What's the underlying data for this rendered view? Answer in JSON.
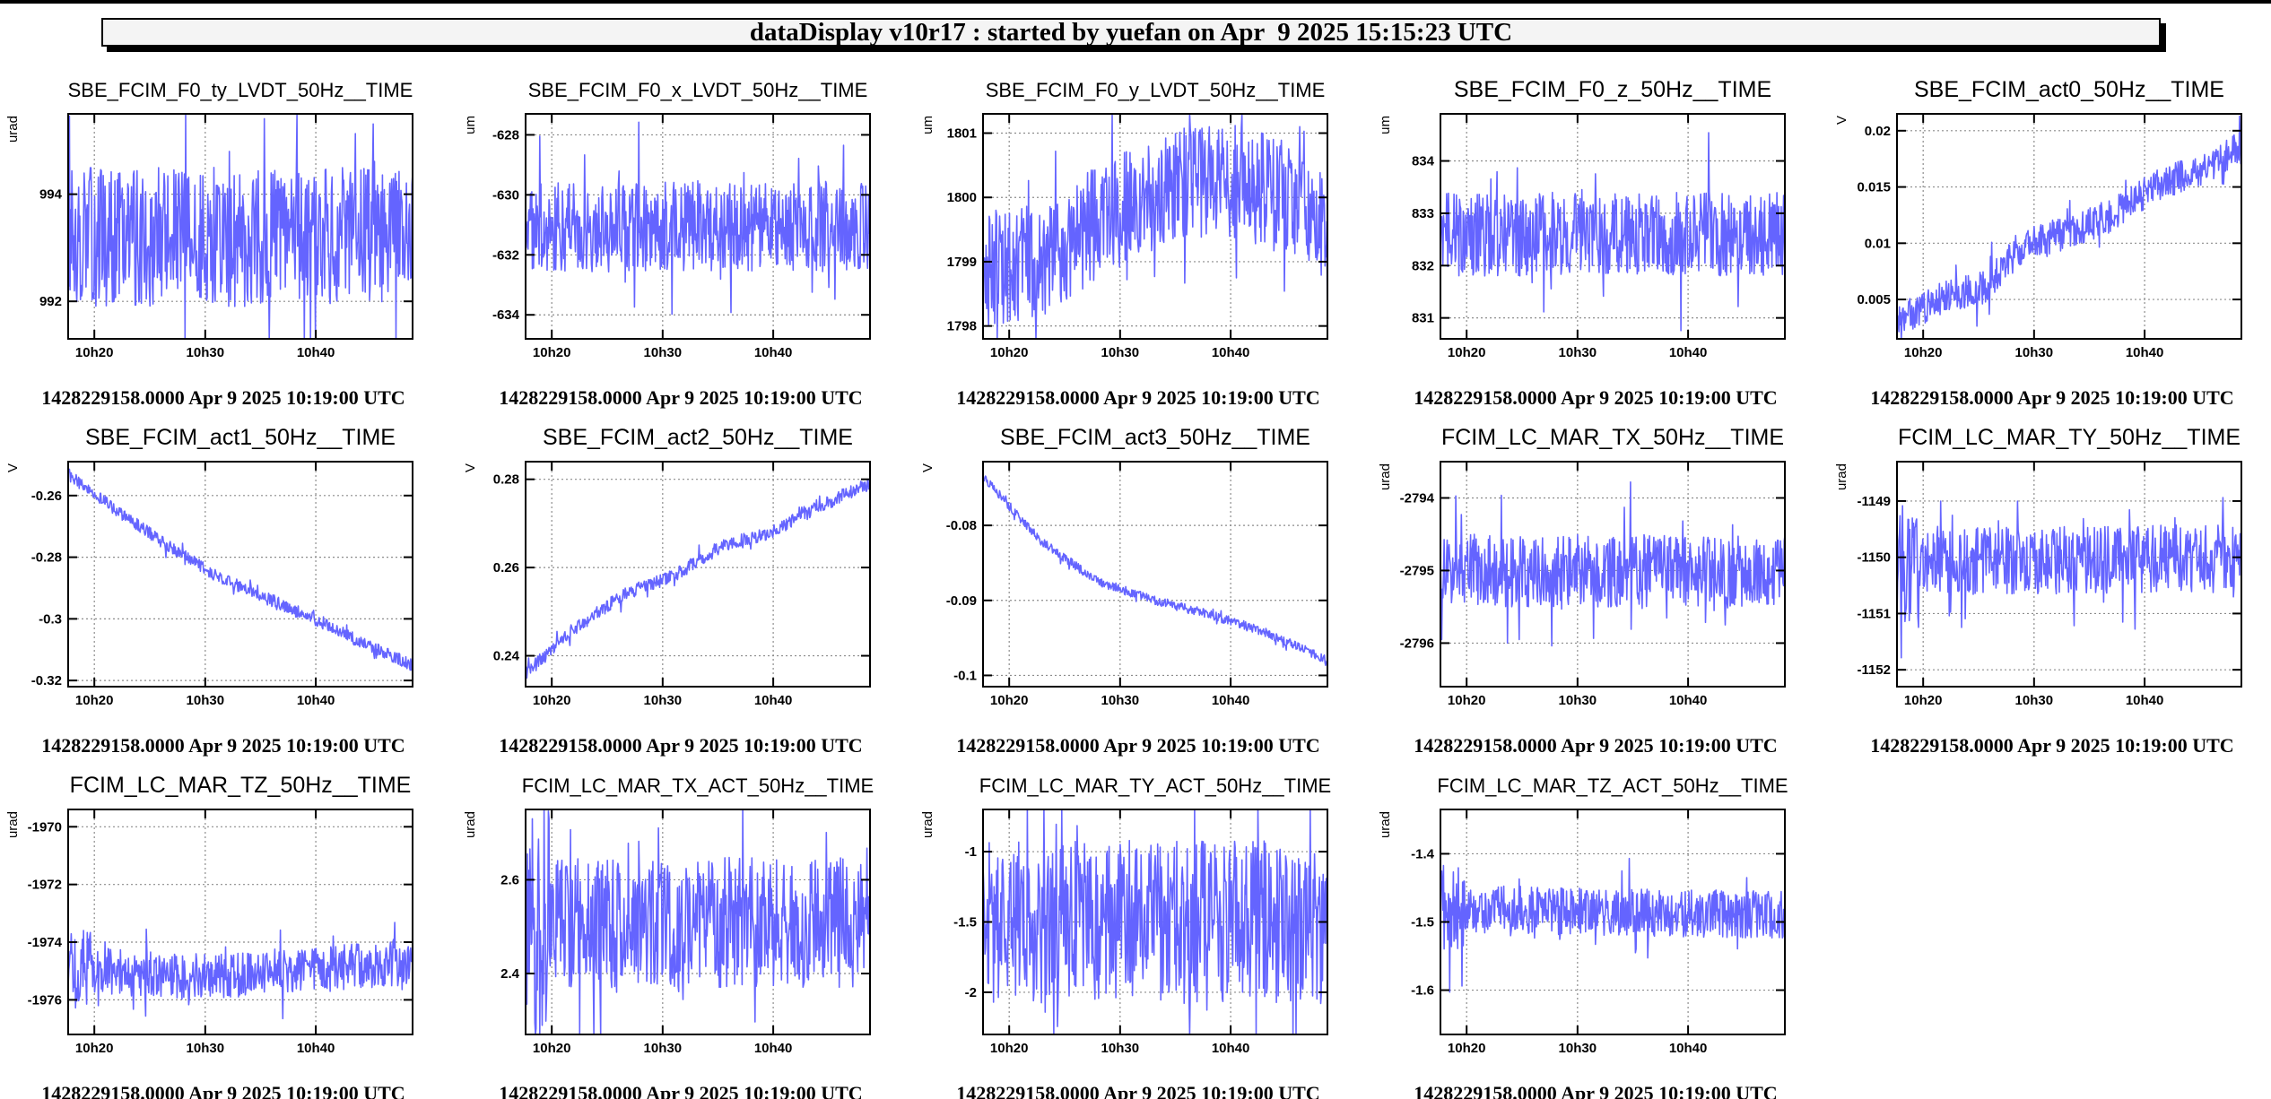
{
  "header": {
    "title": "dataDisplay v10r17 : started by yuefan on Apr  9 2025 15:15:23 UTC"
  },
  "colors": {
    "series": "#6464ff",
    "frame": "#000000",
    "grid": "#8c8c8c",
    "title_box": "#f4f4f4"
  },
  "chart_data": [
    {
      "type": "line",
      "title": "SBE_FCIM_F0_ty_LVDT_50Hz__TIME",
      "ylabel": "urad",
      "x_ticks": [
        "10h20",
        "10h30",
        "10h40"
      ],
      "y_ticks": [
        994,
        992
      ],
      "y_tick_labels": [
        "994",
        "992"
      ],
      "ylim": [
        991.3,
        995.5
      ],
      "grid": true,
      "trend": [
        993.2,
        993.2
      ],
      "band": 1.3,
      "footer": "1428229158.0000 Apr 9 2025 10:19:00 UTC"
    },
    {
      "type": "line",
      "title": "SBE_FCIM_F0_x_LVDT_50Hz__TIME",
      "ylabel": "um",
      "x_ticks": [
        "10h20",
        "10h30",
        "10h40"
      ],
      "y_ticks": [
        -628,
        -630,
        -632,
        -634
      ],
      "y_tick_labels": [
        "-628",
        "-630",
        "-632",
        "-634"
      ],
      "ylim": [
        -634.8,
        -627.3
      ],
      "grid": true,
      "trend": [
        -631.1,
        -631.0
      ],
      "band": 1.5,
      "footer": "1428229158.0000 Apr 9 2025 10:19:00 UTC"
    },
    {
      "type": "line",
      "title": "SBE_FCIM_F0_y_LVDT_50Hz__TIME",
      "ylabel": "um",
      "x_ticks": [
        "10h20",
        "10h30",
        "10h40"
      ],
      "y_ticks": [
        1801,
        1800,
        1799,
        1798
      ],
      "y_tick_labels": [
        "1801",
        "1800",
        "1799",
        "1798"
      ],
      "ylim": [
        1797.8,
        1801.3
      ],
      "grid": true,
      "trend": [
        1798.9,
        1799.0,
        1799.6,
        1800.1,
        1800.3,
        1800.1,
        1799.6
      ],
      "band": 0.9,
      "footer": "1428229158.0000 Apr 9 2025 10:19:00 UTC"
    },
    {
      "type": "line",
      "title": "SBE_FCIM_F0_z_50Hz__TIME",
      "ylabel": "um",
      "x_ticks": [
        "10h20",
        "10h30",
        "10h40"
      ],
      "y_ticks": [
        834,
        833,
        832,
        831
      ],
      "y_tick_labels": [
        "834",
        "833",
        "832",
        "831"
      ],
      "ylim": [
        830.6,
        834.9
      ],
      "grid": true,
      "trend": [
        832.6,
        832.6
      ],
      "band": 0.8,
      "footer": "1428229158.0000 Apr 9 2025 10:19:00 UTC"
    },
    {
      "type": "line",
      "title": "SBE_FCIM_act0_50Hz__TIME",
      "ylabel": "V",
      "x_ticks": [
        "10h20",
        "10h30",
        "10h40"
      ],
      "y_ticks": [
        0.02,
        0.015,
        0.01,
        0.005
      ],
      "y_tick_labels": [
        "0.02",
        "0.015",
        "0.01",
        "0.005"
      ],
      "ylim": [
        0.0015,
        0.0215
      ],
      "grid": true,
      "trend": [
        0.003,
        0.005,
        0.006,
        0.01,
        0.011,
        0.0125,
        0.015,
        0.0165,
        0.0185
      ],
      "band": 0.0015,
      "footer": "1428229158.0000 Apr 9 2025 10:19:00 UTC"
    },
    {
      "type": "line",
      "title": "SBE_FCIM_act1_50Hz__TIME",
      "ylabel": "V",
      "x_ticks": [
        "10h20",
        "10h30",
        "10h40"
      ],
      "y_ticks": [
        -0.26,
        -0.28,
        -0.3,
        -0.32
      ],
      "y_tick_labels": [
        "-0.26",
        "-0.28",
        "-0.3",
        "-0.32"
      ],
      "ylim": [
        -0.322,
        -0.249
      ],
      "grid": true,
      "trend": [
        -0.253,
        -0.265,
        -0.276,
        -0.286,
        -0.293,
        -0.3,
        -0.308,
        -0.315
      ],
      "band": 0.002,
      "footer": "1428229158.0000 Apr 9 2025 10:19:00 UTC"
    },
    {
      "type": "line",
      "title": "SBE_FCIM_act2_50Hz__TIME",
      "ylabel": "V",
      "x_ticks": [
        "10h20",
        "10h30",
        "10h40"
      ],
      "y_ticks": [
        0.28,
        0.26,
        0.24
      ],
      "y_tick_labels": [
        "0.28",
        "0.26",
        "0.24"
      ],
      "ylim": [
        0.233,
        0.284
      ],
      "grid": true,
      "trend": [
        0.236,
        0.246,
        0.254,
        0.258,
        0.265,
        0.268,
        0.274,
        0.279
      ],
      "band": 0.0015,
      "footer": "1428229158.0000 Apr 9 2025 10:19:00 UTC"
    },
    {
      "type": "line",
      "title": "SBE_FCIM_act3_50Hz__TIME",
      "ylabel": "V",
      "x_ticks": [
        "10h20",
        "10h30",
        "10h40"
      ],
      "y_ticks": [
        -0.08,
        -0.09,
        -0.1
      ],
      "y_tick_labels": [
        "-0.08",
        "-0.09",
        "-0.1"
      ],
      "ylim": [
        -0.1015,
        -0.0715
      ],
      "grid": true,
      "trend": [
        -0.0735,
        -0.082,
        -0.0875,
        -0.09,
        -0.092,
        -0.0945,
        -0.098
      ],
      "band": 0.0006,
      "footer": "1428229158.0000 Apr 9 2025 10:19:00 UTC"
    },
    {
      "type": "line",
      "title": "FCIM_LC_MAR_TX_50Hz__TIME",
      "ylabel": "urad",
      "x_ticks": [
        "10h20",
        "10h30",
        "10h40"
      ],
      "y_ticks": [
        -2794,
        -2795,
        -2796
      ],
      "y_tick_labels": [
        "-2794",
        "-2795",
        "-2796"
      ],
      "ylim": [
        -2796.6,
        -2793.5
      ],
      "grid": true,
      "trend": [
        -2795.0,
        -2795.0
      ],
      "band": 0.5,
      "footer": "1428229158.0000 Apr 9 2025 10:19:00 UTC"
    },
    {
      "type": "line",
      "title": "FCIM_LC_MAR_TY_50Hz__TIME",
      "ylabel": "urad",
      "x_ticks": [
        "10h20",
        "10h30",
        "10h40"
      ],
      "y_ticks": [
        -1149,
        -1150,
        -1151,
        -1152
      ],
      "y_tick_labels": [
        "-1149",
        "-1150",
        "-1151",
        "-1152"
      ],
      "ylim": [
        -1152.3,
        -1148.3
      ],
      "grid": true,
      "trend": [
        -1150.1,
        -1150.0
      ],
      "band": 0.6,
      "footer": "1428229158.0000 Apr 9 2025 10:19:00 UTC"
    },
    {
      "type": "line",
      "title": "FCIM_LC_MAR_TZ_50Hz__TIME",
      "ylabel": "urad",
      "x_ticks": [
        "10h20",
        "10h30",
        "10h40"
      ],
      "y_ticks": [
        -1970,
        -1972,
        -1974,
        -1976
      ],
      "y_tick_labels": [
        "-1970",
        "-1972",
        "-1974",
        "-1976"
      ],
      "ylim": [
        -1977.2,
        -1969.4
      ],
      "grid": true,
      "trend": [
        -1974.9,
        -1975.2,
        -1975.0,
        -1974.7
      ],
      "band": 0.8,
      "footer": "1428229158.0000 Apr 9 2025 10:19:00 UTC"
    },
    {
      "type": "line",
      "title": "FCIM_LC_MAR_TX_ACT_50Hz__TIME",
      "ylabel": "urad",
      "x_ticks": [
        "10h20",
        "10h30",
        "10h40"
      ],
      "y_ticks": [
        2.6,
        2.4
      ],
      "y_tick_labels": [
        "2.6",
        "2.4"
      ],
      "ylim": [
        2.27,
        2.75
      ],
      "grid": true,
      "trend": [
        2.51,
        2.51
      ],
      "band": 0.14,
      "footer": "1428229158.0000 Apr 9 2025 10:19:00 UTC"
    },
    {
      "type": "line",
      "title": "FCIM_LC_MAR_TY_ACT_50Hz__TIME",
      "ylabel": "urad",
      "x_ticks": [
        "10h20",
        "10h30",
        "10h40"
      ],
      "y_ticks": [
        -1,
        -1.5,
        -2
      ],
      "y_tick_labels": [
        "-1",
        "-1.5",
        "-2"
      ],
      "ylim": [
        -2.3,
        -0.7
      ],
      "grid": true,
      "trend": [
        -1.5,
        -1.5
      ],
      "band": 0.58,
      "footer": "1428229158.0000 Apr 9 2025 10:19:00 UTC"
    },
    {
      "type": "line",
      "title": "FCIM_LC_MAR_TZ_ACT_50Hz__TIME",
      "ylabel": "urad",
      "x_ticks": [
        "10h20",
        "10h30",
        "10h40"
      ],
      "y_ticks": [
        -1.4,
        -1.5,
        -1.6
      ],
      "y_tick_labels": [
        "-1.4",
        "-1.5",
        "-1.6"
      ],
      "ylim": [
        -1.665,
        -1.335
      ],
      "grid": true,
      "trend": [
        -1.48,
        -1.49
      ],
      "band": 0.035,
      "footer": "1428229158.0000 Apr 9 2025 10:19:00 UTC"
    }
  ]
}
